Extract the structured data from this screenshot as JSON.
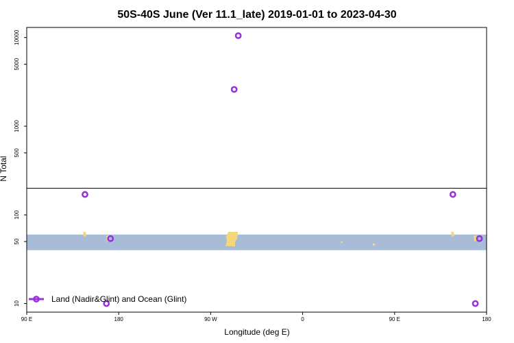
{
  "chart_data": {
    "type": "scatter",
    "title": "50S-40S June (Ver 11.1_late)   2019-01-01 to 2023-04-30",
    "xlabel": "Longitude (deg E)",
    "ylabel": "N Total",
    "x_ticks": [
      {
        "value": 90,
        "label": "90 E"
      },
      {
        "value": 180,
        "label": "180"
      },
      {
        "value": 270,
        "label": "90 W"
      },
      {
        "value": 360,
        "label": "0"
      },
      {
        "value": 450,
        "label": "90 E"
      },
      {
        "value": 540,
        "label": "180"
      }
    ],
    "xlim": [
      90,
      540
    ],
    "y_scale": "log",
    "ylim": [
      8,
      13000
    ],
    "y_ticks": [
      {
        "value": 10,
        "label": "10"
      },
      {
        "value": 50,
        "label": "50"
      },
      {
        "value": 100,
        "label": "100"
      },
      {
        "value": 500,
        "label": "500"
      },
      {
        "value": 1000,
        "label": "1000"
      },
      {
        "value": 5000,
        "label": "5000"
      },
      {
        "value": 10000,
        "label": "10000"
      }
    ],
    "reference_line_y": 200,
    "latitude_band": {
      "y_low": 40,
      "y_high": 60,
      "color": "#a8bcd8"
    },
    "land_color": "#f5d67a",
    "series": [
      {
        "name": "Land (Nadir&Glint) and Ocean (Glint)",
        "color": "#9b30e0",
        "marker": "open-circle",
        "points": [
          {
            "x": 147,
            "y": 170
          },
          {
            "x": 168,
            "y": 10
          },
          {
            "x": 172,
            "y": 54
          },
          {
            "x": 293,
            "y": 2600
          },
          {
            "x": 297,
            "y": 10500
          },
          {
            "x": 507,
            "y": 170
          },
          {
            "x": 529,
            "y": 10
          },
          {
            "x": 533,
            "y": 54
          }
        ]
      }
    ],
    "legend_position": "bottom-left"
  }
}
